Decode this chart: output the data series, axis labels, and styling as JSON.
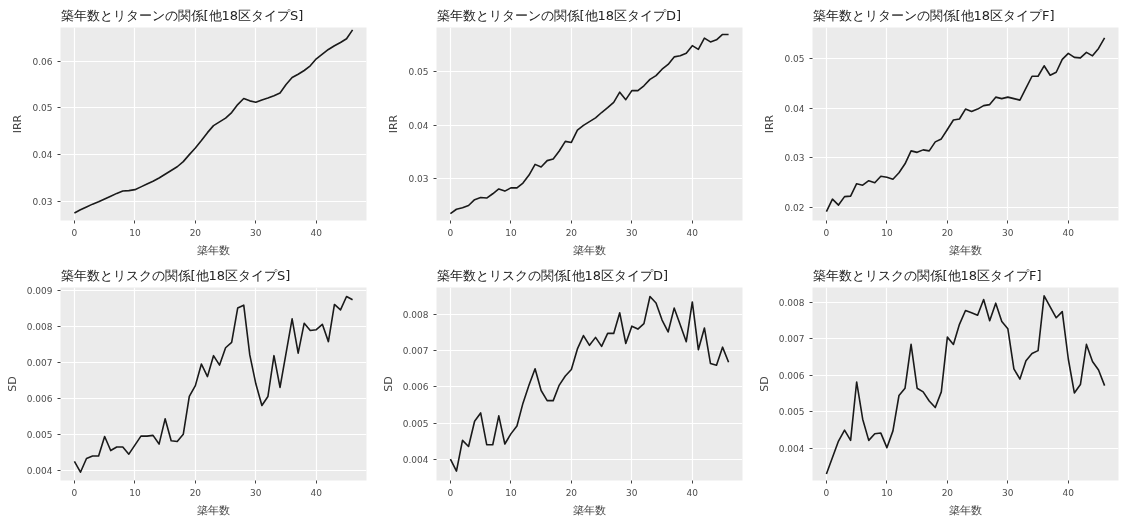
{
  "chart_data": [
    {
      "type": "line",
      "title": "築年数とリターンの関係[他18区タイプS]",
      "xlabel": "築年数",
      "ylabel": "IRR",
      "color": "#1a1a1a",
      "grid": true,
      "xlim": [
        -2.3,
        48.3
      ],
      "xticks": [
        0,
        10,
        20,
        30,
        40
      ],
      "ylim": [
        0.0259,
        0.0672
      ],
      "yticks": [
        0.03,
        0.04,
        0.05,
        0.06
      ],
      "x": [
        0,
        1,
        2,
        3,
        4,
        5,
        6,
        7,
        8,
        9,
        10,
        11,
        12,
        13,
        14,
        15,
        16,
        17,
        18,
        19,
        20,
        21,
        22,
        23,
        24,
        25,
        26,
        27,
        28,
        29,
        30,
        31,
        32,
        33,
        34,
        35,
        36,
        37,
        38,
        39,
        40,
        41,
        42,
        43,
        44,
        45,
        46
      ],
      "values": [
        0.0275,
        0.0282,
        0.0288,
        0.0294,
        0.0299,
        0.0305,
        0.0311,
        0.0317,
        0.0322,
        0.0323,
        0.0325,
        0.0331,
        0.0337,
        0.0343,
        0.035,
        0.0358,
        0.0366,
        0.0374,
        0.0385,
        0.04,
        0.0414,
        0.043,
        0.0447,
        0.0462,
        0.047,
        0.0478,
        0.049,
        0.0507,
        0.052,
        0.0515,
        0.0512,
        0.0517,
        0.0521,
        0.0526,
        0.0532,
        0.055,
        0.0565,
        0.0572,
        0.058,
        0.059,
        0.0605,
        0.0615,
        0.0625,
        0.0633,
        0.064,
        0.0648,
        0.0667
      ]
    },
    {
      "type": "line",
      "title": "築年数とリターンの関係[他18区タイプD]",
      "xlabel": "築年数",
      "ylabel": "IRR",
      "color": "#1a1a1a",
      "grid": true,
      "xlim": [
        -2.3,
        48.3
      ],
      "xticks": [
        0,
        10,
        20,
        30,
        40
      ],
      "ylim": [
        0.0222,
        0.0583
      ],
      "yticks": [
        0.03,
        0.04,
        0.05
      ],
      "x": [
        0,
        1,
        2,
        3,
        4,
        5,
        6,
        7,
        8,
        9,
        10,
        11,
        12,
        13,
        14,
        15,
        16,
        17,
        18,
        19,
        20,
        21,
        22,
        23,
        24,
        25,
        26,
        27,
        28,
        29,
        30,
        31,
        32,
        33,
        34,
        35,
        36,
        37,
        38,
        39,
        40,
        41,
        42,
        43,
        44,
        45,
        46
      ],
      "values": [
        0.0235,
        0.0243,
        0.0246,
        0.025,
        0.0261,
        0.0265,
        0.0264,
        0.0272,
        0.0281,
        0.0277,
        0.0283,
        0.0283,
        0.0292,
        0.0307,
        0.0327,
        0.0322,
        0.0334,
        0.0337,
        0.0352,
        0.037,
        0.0368,
        0.0391,
        0.04,
        0.0407,
        0.0414,
        0.0424,
        0.0433,
        0.0443,
        0.0462,
        0.0448,
        0.0465,
        0.0465,
        0.0474,
        0.0486,
        0.0493,
        0.0505,
        0.0514,
        0.0528,
        0.053,
        0.0535,
        0.0549,
        0.0542,
        0.0563,
        0.0556,
        0.056,
        0.057,
        0.057
      ]
    },
    {
      "type": "line",
      "title": "築年数とリターンの関係[他18区タイプF]",
      "xlabel": "築年数",
      "ylabel": "IRR",
      "color": "#1a1a1a",
      "grid": true,
      "xlim": [
        -2.3,
        48.3
      ],
      "xticks": [
        0,
        10,
        20,
        30,
        40
      ],
      "ylim": [
        0.0174,
        0.0562
      ],
      "yticks": [
        0.02,
        0.03,
        0.04,
        0.05
      ],
      "x": [
        0,
        1,
        2,
        3,
        4,
        5,
        6,
        7,
        8,
        9,
        10,
        11,
        12,
        13,
        14,
        15,
        16,
        17,
        18,
        19,
        20,
        21,
        22,
        23,
        24,
        25,
        26,
        27,
        28,
        29,
        30,
        31,
        32,
        33,
        34,
        35,
        36,
        37,
        38,
        39,
        40,
        41,
        42,
        43,
        44,
        45,
        46
      ],
      "values": [
        0.0192,
        0.0217,
        0.0205,
        0.0222,
        0.0223,
        0.0248,
        0.0245,
        0.0254,
        0.025,
        0.0263,
        0.0261,
        0.0257,
        0.027,
        0.0288,
        0.0314,
        0.0311,
        0.0316,
        0.0314,
        0.0332,
        0.0338,
        0.0357,
        0.0376,
        0.0378,
        0.0398,
        0.0393,
        0.0398,
        0.0405,
        0.0407,
        0.0422,
        0.0419,
        0.0422,
        0.0419,
        0.0416,
        0.044,
        0.0464,
        0.0464,
        0.0485,
        0.0466,
        0.0472,
        0.0498,
        0.051,
        0.0502,
        0.0501,
        0.0512,
        0.0505,
        0.052,
        0.0541
      ]
    },
    {
      "type": "line",
      "title": "築年数とリスクの関係[他18区タイプS]",
      "xlabel": "築年数",
      "ylabel": "SD",
      "color": "#1a1a1a",
      "grid": true,
      "xlim": [
        -2.3,
        48.3
      ],
      "xticks": [
        0,
        10,
        20,
        30,
        40
      ],
      "ylim": [
        0.00372,
        0.00907
      ],
      "yticks": [
        0.004,
        0.005,
        0.006,
        0.007,
        0.008,
        0.009
      ],
      "x": [
        0,
        1,
        2,
        3,
        4,
        5,
        6,
        7,
        8,
        9,
        10,
        11,
        12,
        13,
        14,
        15,
        16,
        17,
        18,
        19,
        20,
        21,
        22,
        23,
        24,
        25,
        26,
        27,
        28,
        29,
        30,
        31,
        32,
        33,
        34,
        35,
        36,
        37,
        38,
        39,
        40,
        41,
        42,
        43,
        44,
        45,
        46
      ],
      "values": [
        0.00425,
        0.00395,
        0.00433,
        0.0044,
        0.0044,
        0.00494,
        0.00455,
        0.00465,
        0.00465,
        0.00445,
        0.0047,
        0.00495,
        0.00495,
        0.00497,
        0.00473,
        0.00543,
        0.00482,
        0.0048,
        0.005,
        0.00605,
        0.00635,
        0.00695,
        0.0066,
        0.00718,
        0.00692,
        0.0074,
        0.00755,
        0.0085,
        0.00858,
        0.0072,
        0.0064,
        0.0058,
        0.00605,
        0.00718,
        0.0063,
        0.00725,
        0.0082,
        0.00725,
        0.00808,
        0.00788,
        0.0079,
        0.00805,
        0.00757,
        0.0086,
        0.00845,
        0.00882,
        0.00873
      ]
    },
    {
      "type": "line",
      "title": "築年数とリスクの関係[他18区タイプD]",
      "xlabel": "築年数",
      "ylabel": "SD",
      "color": "#1a1a1a",
      "grid": true,
      "xlim": [
        -2.3,
        48.3
      ],
      "xticks": [
        0,
        10,
        20,
        30,
        40
      ],
      "ylim": [
        0.00341,
        0.00875
      ],
      "yticks": [
        0.004,
        0.005,
        0.006,
        0.007,
        0.008
      ],
      "x": [
        0,
        1,
        2,
        3,
        4,
        5,
        6,
        7,
        8,
        9,
        10,
        11,
        12,
        13,
        14,
        15,
        16,
        17,
        18,
        19,
        20,
        21,
        22,
        23,
        24,
        25,
        26,
        27,
        28,
        29,
        30,
        31,
        32,
        33,
        34,
        35,
        36,
        37,
        38,
        39,
        40,
        41,
        42,
        43,
        44,
        45,
        46
      ],
      "values": [
        0.004,
        0.00367,
        0.00452,
        0.00435,
        0.00505,
        0.00528,
        0.0044,
        0.0044,
        0.0052,
        0.00442,
        0.0047,
        0.00492,
        0.00555,
        0.00605,
        0.0065,
        0.0059,
        0.00562,
        0.00562,
        0.00605,
        0.0063,
        0.00648,
        0.00705,
        0.00742,
        0.00715,
        0.00737,
        0.00712,
        0.00748,
        0.00748,
        0.00805,
        0.0072,
        0.00768,
        0.0076,
        0.00775,
        0.0085,
        0.00832,
        0.00785,
        0.00752,
        0.00818,
        0.00772,
        0.00725,
        0.00835,
        0.00703,
        0.00763,
        0.00665,
        0.0066,
        0.0071,
        0.00668
      ]
    },
    {
      "type": "line",
      "title": "築年数とリスクの関係[他18区タイプF]",
      "xlabel": "築年数",
      "ylabel": "SD",
      "color": "#1a1a1a",
      "grid": true,
      "xlim": [
        -2.3,
        48.3
      ],
      "xticks": [
        0,
        10,
        20,
        30,
        40
      ],
      "ylim": [
        0.00312,
        0.00841
      ],
      "yticks": [
        0.004,
        0.005,
        0.006,
        0.007,
        0.008
      ],
      "x": [
        0,
        1,
        2,
        3,
        4,
        5,
        6,
        7,
        8,
        9,
        10,
        11,
        12,
        13,
        14,
        15,
        16,
        17,
        18,
        19,
        20,
        21,
        22,
        23,
        24,
        25,
        26,
        27,
        28,
        29,
        30,
        31,
        32,
        33,
        34,
        35,
        36,
        37,
        38,
        39,
        40,
        41,
        42,
        43,
        44,
        45,
        46
      ],
      "values": [
        0.0033,
        0.00375,
        0.0042,
        0.0045,
        0.00422,
        0.00582,
        0.0048,
        0.00422,
        0.0044,
        0.00442,
        0.00402,
        0.00448,
        0.00545,
        0.00565,
        0.00685,
        0.00565,
        0.00555,
        0.0053,
        0.00512,
        0.00555,
        0.00705,
        0.00685,
        0.0074,
        0.00778,
        0.00772,
        0.00765,
        0.00808,
        0.0075,
        0.00798,
        0.00748,
        0.00728,
        0.00618,
        0.0059,
        0.0064,
        0.0066,
        0.00668,
        0.00818,
        0.00788,
        0.00758,
        0.00775,
        0.00645,
        0.00552,
        0.00575,
        0.00685,
        0.00638,
        0.00615,
        0.00572
      ]
    }
  ]
}
